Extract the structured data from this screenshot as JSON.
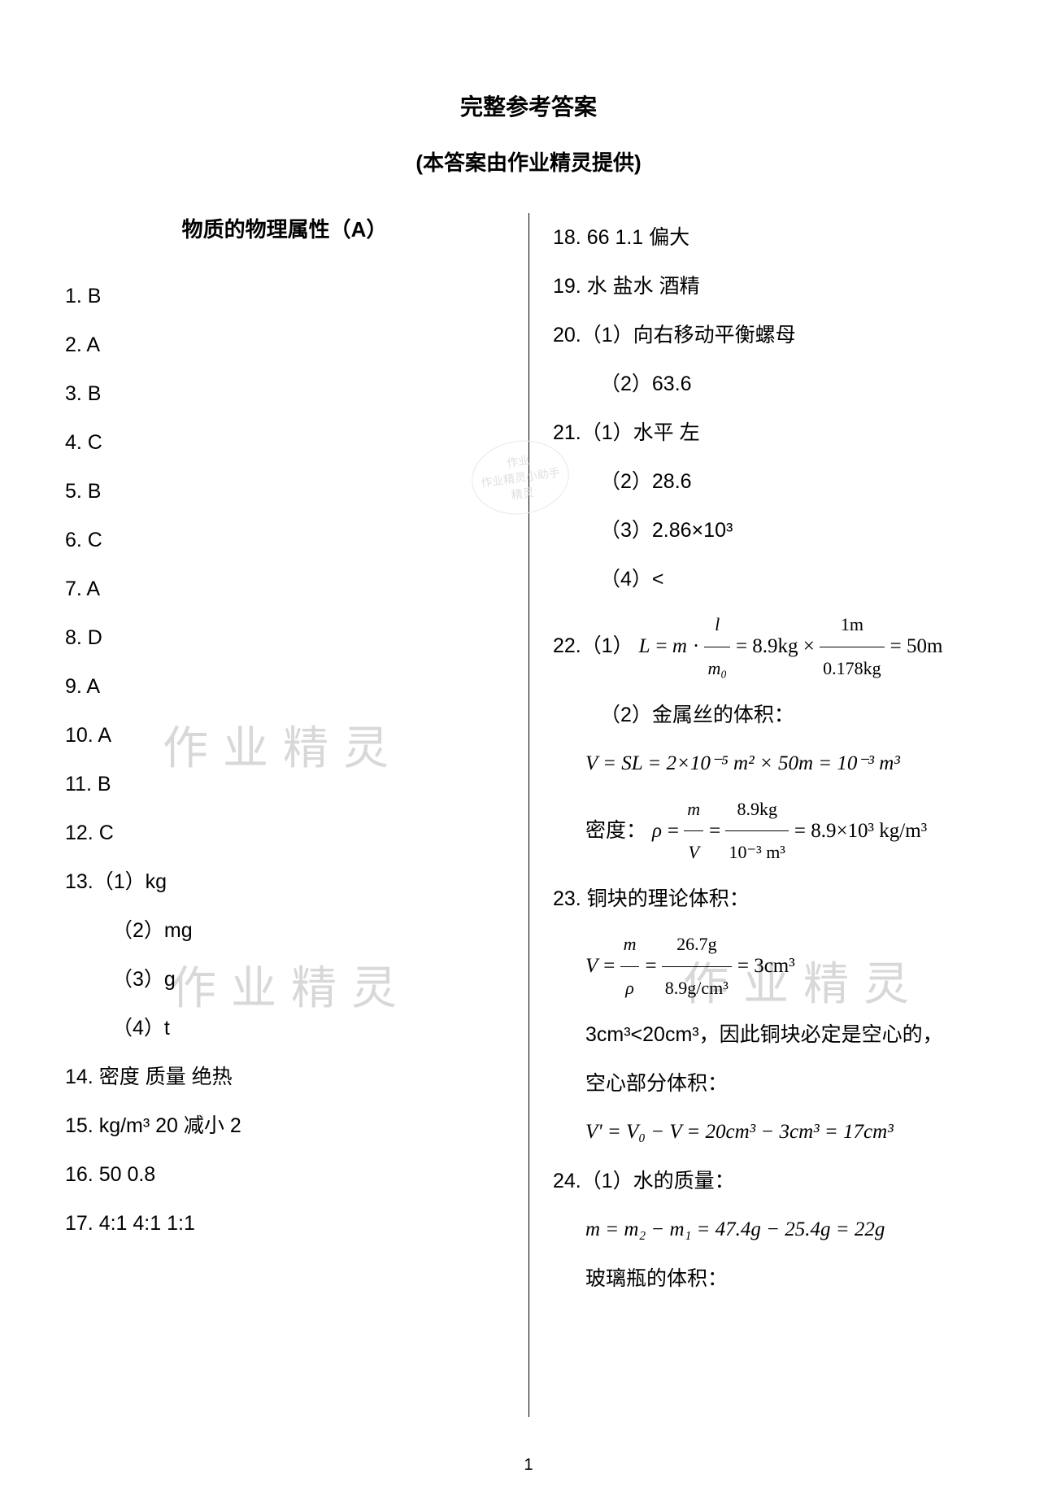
{
  "title_main": "完整参考答案",
  "title_sub": "(本答案由作业精灵提供)",
  "section_title": "物质的物理属性（A）",
  "watermark_text": "作业精灵",
  "stamp_line1": "作业",
  "stamp_line2": "作业精灵小助手",
  "stamp_line3": "精灵",
  "page_number": "1",
  "left": {
    "a1": "1.   B",
    "a2": "2.   A",
    "a3": "3.   B",
    "a4": "4.   C",
    "a5": "5.   B",
    "a6": "6.   C",
    "a7": "7.   A",
    "a8": "8.   D",
    "a9": "9.   A",
    "a10": "10. A",
    "a11": "11. B",
    "a12": "12. C",
    "a13_1": "13.（1）kg",
    "a13_2": "（2）mg",
    "a13_3": "（3）g",
    "a13_4": "（4）t",
    "a14": "14. 密度     质量     绝热",
    "a15": "15. kg/m³    20    减小    2",
    "a16": "16. 50     0.8",
    "a17": "17. 4:1     4:1     1:1"
  },
  "right": {
    "a18": "18. 66     1.1     偏大",
    "a19": "19. 水     盐水     酒精",
    "a20_1": "20.（1）向右移动平衡螺母",
    "a20_2": "（2）63.6",
    "a21_1": "21.（1）水平     左",
    "a21_2": "（2）28.6",
    "a21_3": "（3）2.86×10³",
    "a21_4": "（4）<",
    "a22_1_prefix": "22.（1）",
    "a22_1_L": "L",
    "a22_1_eq1": " = ",
    "a22_1_m": "m",
    "a22_1_dot": " · ",
    "a22_1_frac1_num": "l",
    "a22_1_frac1_den": "m₀",
    "a22_1_eq2": " = 8.9kg × ",
    "a22_1_frac2_num": "1m",
    "a22_1_frac2_den": "0.178kg",
    "a22_1_end": " = 50m",
    "a22_2": "（2）金属丝的体积：",
    "a22_2_eq": "V = SL = 2×10⁻⁵ m² × 50m = 10⁻³ m³",
    "a22_2_density_label": "密度：",
    "a22_2_rho": "ρ",
    "a22_2_eq1": " = ",
    "a22_2_frac1_num": "m",
    "a22_2_frac1_den": "V",
    "a22_2_eq2": " = ",
    "a22_2_frac2_num": "8.9kg",
    "a22_2_frac2_den": "10⁻³ m³",
    "a22_2_end": " = 8.9×10³ kg/m³",
    "a23_label": "23. 铜块的理论体积：",
    "a23_V": "V",
    "a23_eq1": " = ",
    "a23_frac1_num": "m",
    "a23_frac1_den": "ρ",
    "a23_eq2": " = ",
    "a23_frac2_num": "26.7g",
    "a23_frac2_den": "8.9g/cm³",
    "a23_end": " = 3cm³",
    "a23_conclusion": "3cm³<20cm³，因此铜块必定是空心的，",
    "a23_hollow_label": "空心部分体积：",
    "a23_hollow_eq": "V' = V₀ − V = 20cm³ − 3cm³ = 17cm³",
    "a24_1": "24.（1）水的质量：",
    "a24_1_eq": "m = m₂ − m₁ = 47.4g − 25.4g = 22g",
    "a24_bottle": "玻璃瓶的体积："
  }
}
